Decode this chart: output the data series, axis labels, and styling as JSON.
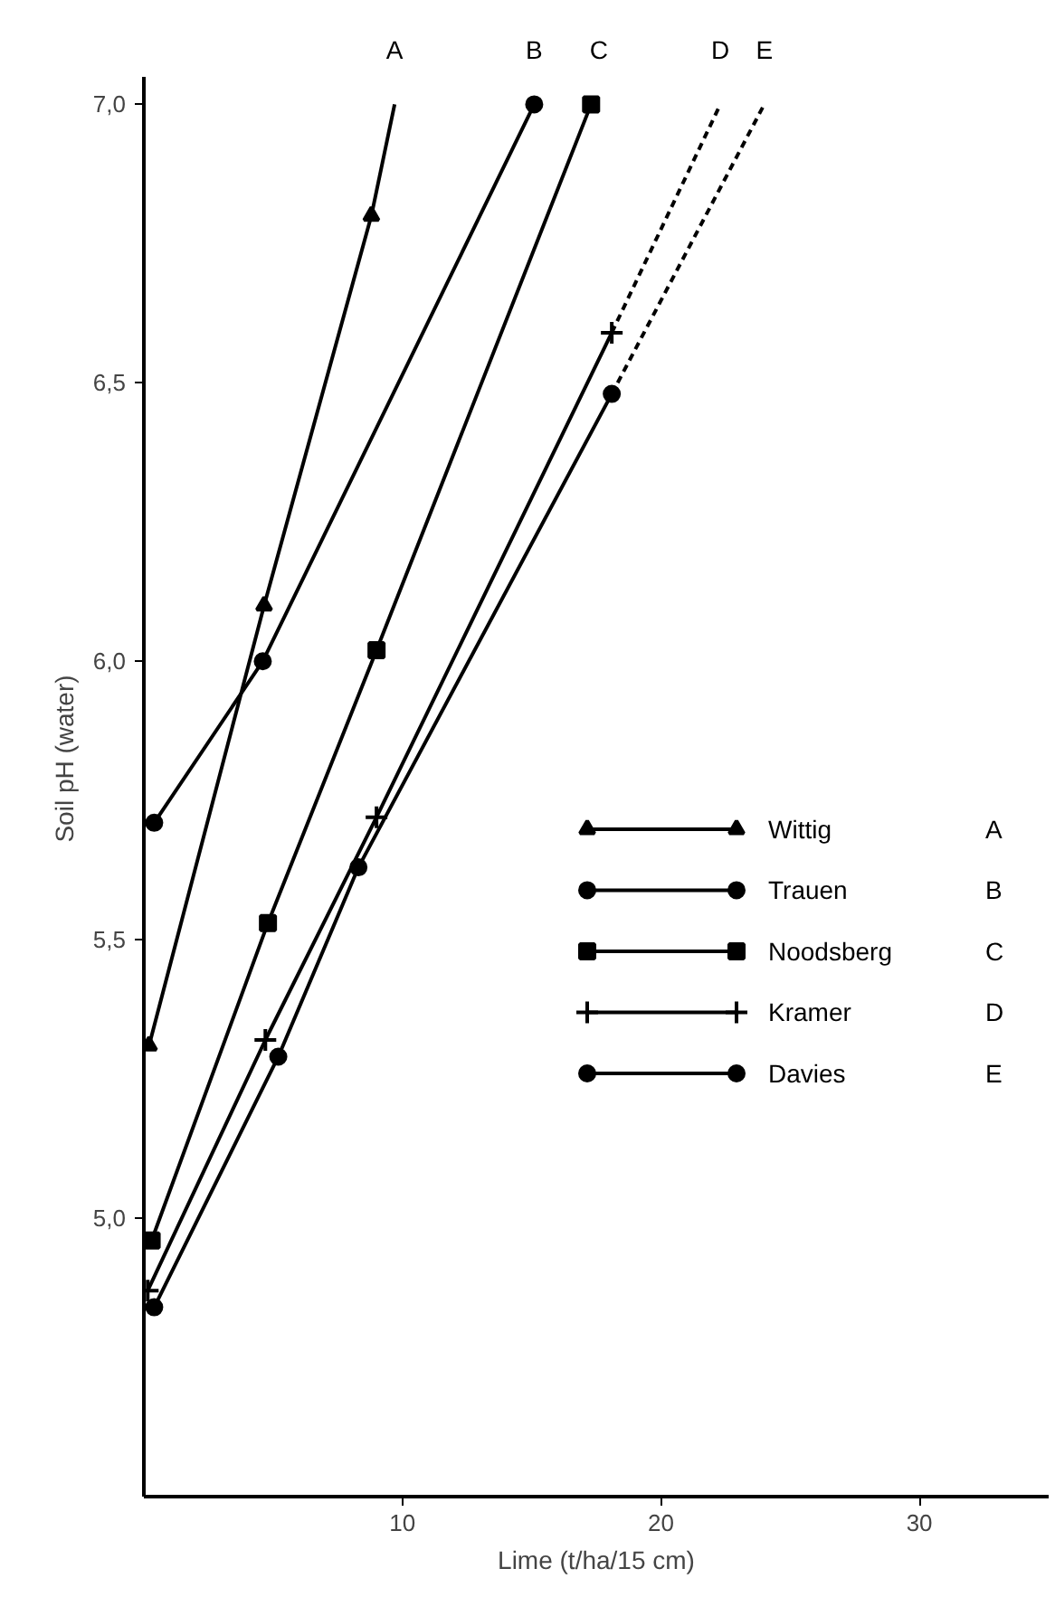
{
  "chart_data": {
    "type": "line",
    "xlabel": "Lime (t/ha/15 cm)",
    "ylabel": "Soil pH (water)",
    "xlim": [
      0,
      35
    ],
    "ylim": [
      4.5,
      7.05
    ],
    "xticks": [
      10,
      20,
      30
    ],
    "yticks": [
      {
        "value": 5.0,
        "label": "5,0"
      },
      {
        "value": 5.5,
        "label": "5,5"
      },
      {
        "value": 6.0,
        "label": "6,0"
      },
      {
        "value": 6.5,
        "label": "6,5"
      },
      {
        "value": 7.0,
        "label": "7,0"
      }
    ],
    "grid": false,
    "legend": "right",
    "line_style": "solid",
    "series": [
      {
        "name": "Wittig",
        "color": "#000000",
        "marker": "triangle",
        "x": [
          0.2,
          4.65,
          8.8
        ],
        "values": [
          5.31,
          6.1,
          6.8
        ]
      },
      {
        "name": "Trauen",
        "color": "#000000",
        "marker": "circle",
        "x": [
          0.4,
          4.6,
          15.1
        ],
        "values": [
          5.71,
          6.0,
          7.0
        ]
      },
      {
        "name": "Noodsberg",
        "color": "#000000",
        "marker": "square",
        "x": [
          0.3,
          4.8,
          9.0,
          17.3
        ],
        "values": [
          4.96,
          5.53,
          6.02,
          7.0
        ]
      },
      {
        "name": "Kramer",
        "color": "#000000",
        "marker": "cross",
        "x": [
          0.15,
          4.7,
          9.0,
          18.1
        ],
        "values": [
          4.87,
          5.32,
          5.72,
          6.59
        ]
      },
      {
        "name": "Davies",
        "color": "#000000",
        "marker": "circle",
        "x": [
          0.4,
          5.2,
          8.3,
          18.1
        ],
        "values": [
          4.84,
          5.29,
          5.63,
          6.48
        ]
      },
      {
        "color": "#000000",
        "marker": "none",
        "x": [
          8.8,
          9.7
        ],
        "values": [
          6.8,
          7.0
        ]
      },
      {
        "color": "#000000",
        "marker": "none",
        "line_style": "dashed",
        "x": [
          18.1,
          22.3
        ],
        "values": [
          6.59,
          7.0
        ]
      },
      {
        "color": "#000000",
        "marker": "none",
        "line_style": "dashed",
        "x": [
          18.1,
          24.0
        ],
        "values": [
          6.48,
          7.0
        ]
      }
    ],
    "annotations": [
      {
        "text": "A",
        "x": 9.7,
        "y": 7.0
      },
      {
        "text": "B",
        "x": 15.1,
        "y": 7.0
      },
      {
        "text": "C",
        "x": 17.6,
        "y": 7.0
      },
      {
        "text": "D",
        "x": 22.3,
        "y": 7.0
      },
      {
        "text": "E",
        "x": 24.0,
        "y": 7.0
      }
    ]
  }
}
